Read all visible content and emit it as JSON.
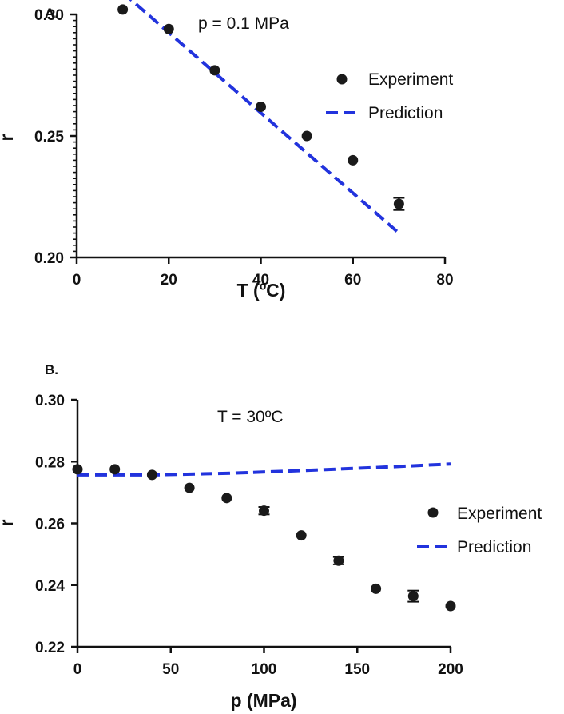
{
  "chart_data": [
    {
      "type": "scatter",
      "panel_label": "A.",
      "annotation": "p = 0.1 MPa",
      "xlabel": "T (ºC)",
      "ylabel": "r",
      "xlim": [
        0,
        80
      ],
      "ylim": [
        0.2,
        0.3
      ],
      "x_ticks": [
        0,
        20,
        40,
        60,
        80
      ],
      "x_tick_labels": [
        "0",
        "20",
        "40",
        "60",
        "80"
      ],
      "y_ticks": [
        0.2,
        0.25,
        0.3
      ],
      "y_tick_labels": [
        "0.20",
        "0.25",
        "0.30"
      ],
      "grid": false,
      "legend_position": "right",
      "series": [
        {
          "name": "Experiment",
          "kind": "points",
          "color": "#1a1a1a",
          "points": [
            {
              "x": 10,
              "y": 0.302,
              "err": 0
            },
            {
              "x": 20,
              "y": 0.294,
              "err": 0
            },
            {
              "x": 30,
              "y": 0.277,
              "err": 0
            },
            {
              "x": 40,
              "y": 0.262,
              "err": 0
            },
            {
              "x": 50,
              "y": 0.25,
              "err": 0
            },
            {
              "x": 60,
              "y": 0.24,
              "err": 0
            },
            {
              "x": 70,
              "y": 0.222,
              "err": 0.0025
            }
          ]
        },
        {
          "name": "Prediction",
          "kind": "dashed-line",
          "color": "#2233dd",
          "points": [
            {
              "x": 10,
              "y": 0.309
            },
            {
              "x": 70,
              "y": 0.21
            }
          ]
        }
      ]
    },
    {
      "type": "scatter",
      "panel_label": "B.",
      "annotation": "T = 30ºC",
      "xlabel": "p (MPa)",
      "ylabel": "r",
      "xlim": [
        0,
        200
      ],
      "ylim": [
        0.22,
        0.3
      ],
      "x_ticks": [
        0,
        50,
        100,
        150,
        200
      ],
      "x_tick_labels": [
        "0",
        "50",
        "100",
        "150",
        "200"
      ],
      "y_ticks": [
        0.22,
        0.24,
        0.26,
        0.28,
        0.3
      ],
      "y_tick_labels": [
        "0.22",
        "0.24",
        "0.26",
        "0.28",
        "0.30"
      ],
      "grid": false,
      "legend_position": "right",
      "series": [
        {
          "name": "Experiment",
          "kind": "points",
          "color": "#1a1a1a",
          "points": [
            {
              "x": 0,
              "y": 0.2775,
              "err": 0
            },
            {
              "x": 20,
              "y": 0.2775,
              "err": 0
            },
            {
              "x": 40,
              "y": 0.2757,
              "err": 0
            },
            {
              "x": 60,
              "y": 0.2715,
              "err": 0
            },
            {
              "x": 80,
              "y": 0.2682,
              "err": 0
            },
            {
              "x": 100,
              "y": 0.2641,
              "err": 0.0012
            },
            {
              "x": 120,
              "y": 0.2561,
              "err": 0
            },
            {
              "x": 140,
              "y": 0.2479,
              "err": 0.0012
            },
            {
              "x": 160,
              "y": 0.2388,
              "err": 0
            },
            {
              "x": 180,
              "y": 0.2364,
              "err": 0.0018
            },
            {
              "x": 200,
              "y": 0.2332,
              "err": 0
            }
          ]
        },
        {
          "name": "Prediction",
          "kind": "dashed-line",
          "color": "#2233dd",
          "points": [
            {
              "x": 0,
              "y": 0.2757
            },
            {
              "x": 40,
              "y": 0.2757
            },
            {
              "x": 80,
              "y": 0.2762
            },
            {
              "x": 120,
              "y": 0.2771
            },
            {
              "x": 160,
              "y": 0.2781
            },
            {
              "x": 200,
              "y": 0.2792
            }
          ]
        }
      ]
    }
  ]
}
